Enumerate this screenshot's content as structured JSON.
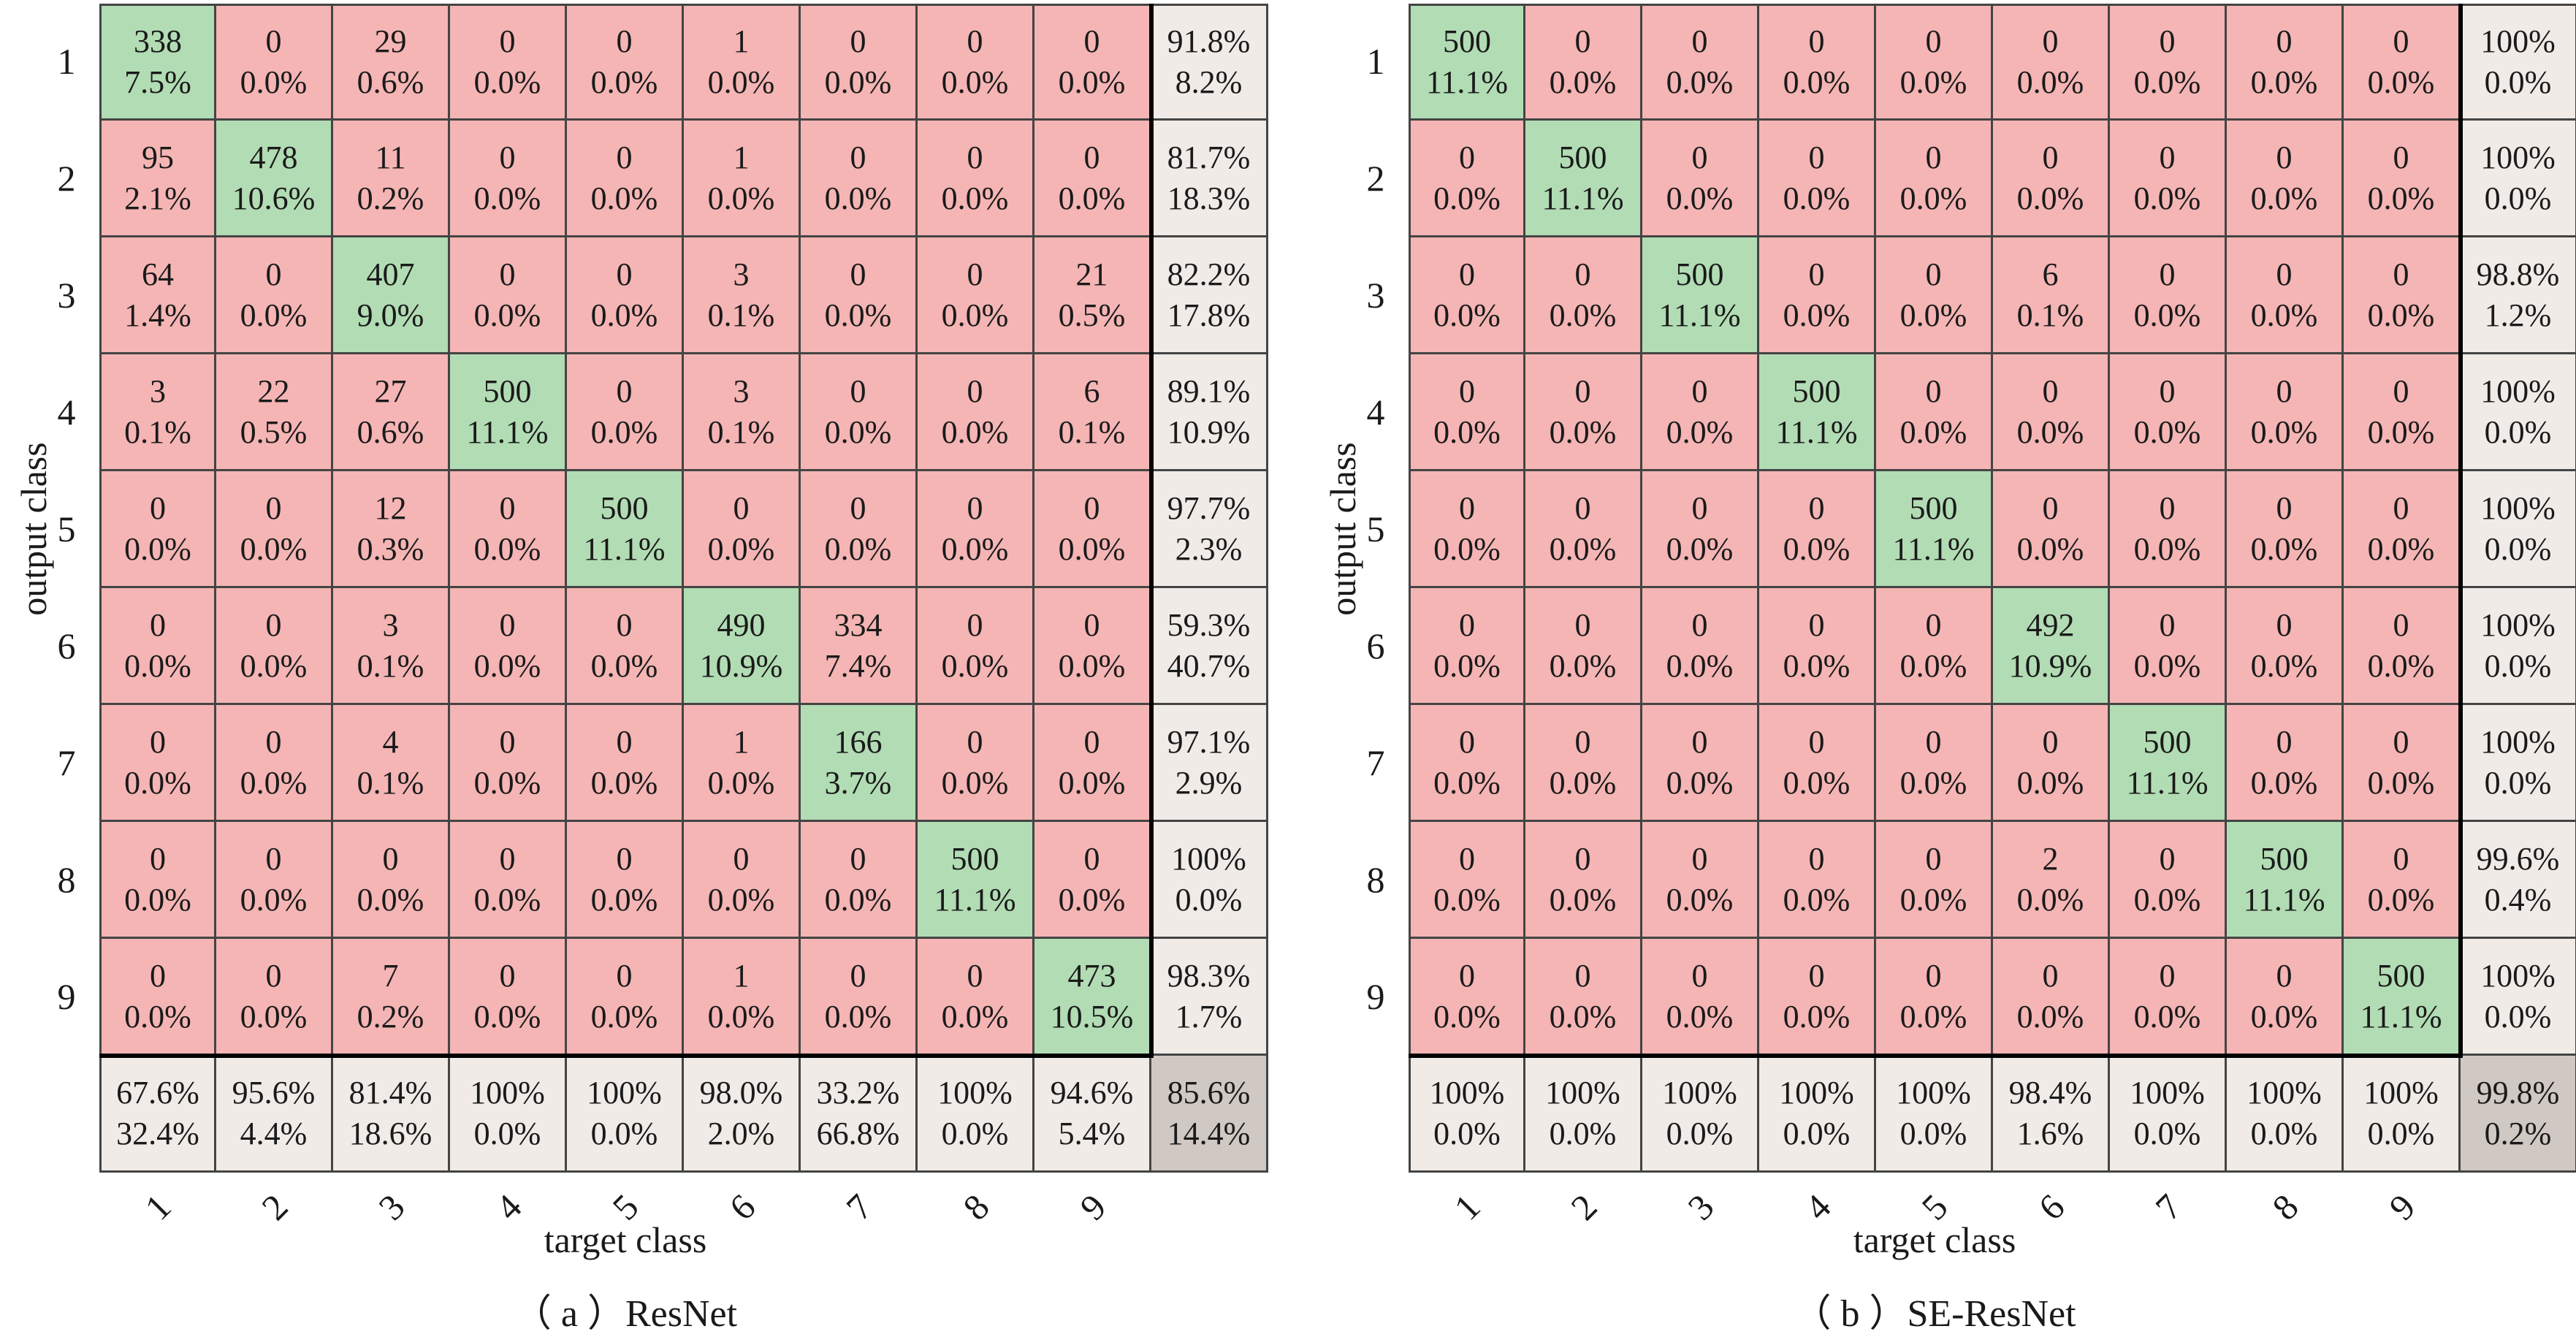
{
  "chart_data": [
    {
      "type": "heatmap",
      "caption": "（ a ）ResNet",
      "xlabel": "target class",
      "ylabel": "output class",
      "classes": [
        "1",
        "2",
        "3",
        "4",
        "5",
        "6",
        "7",
        "8",
        "9"
      ],
      "matrix": [
        [
          338,
          0,
          29,
          0,
          0,
          1,
          0,
          0,
          0
        ],
        [
          95,
          478,
          11,
          0,
          0,
          1,
          0,
          0,
          0
        ],
        [
          64,
          0,
          407,
          0,
          0,
          3,
          0,
          0,
          21
        ],
        [
          3,
          22,
          27,
          500,
          0,
          3,
          0,
          0,
          6
        ],
        [
          0,
          0,
          12,
          0,
          500,
          0,
          0,
          0,
          0
        ],
        [
          0,
          0,
          3,
          0,
          0,
          490,
          334,
          0,
          0
        ],
        [
          0,
          0,
          4,
          0,
          0,
          1,
          166,
          0,
          0
        ],
        [
          0,
          0,
          0,
          0,
          0,
          0,
          0,
          500,
          0
        ],
        [
          0,
          0,
          7,
          0,
          0,
          1,
          0,
          0,
          473
        ]
      ],
      "matrix_pct": [
        [
          "7.5%",
          "0.0%",
          "0.6%",
          "0.0%",
          "0.0%",
          "0.0%",
          "0.0%",
          "0.0%",
          "0.0%"
        ],
        [
          "2.1%",
          "10.6%",
          "0.2%",
          "0.0%",
          "0.0%",
          "0.0%",
          "0.0%",
          "0.0%",
          "0.0%"
        ],
        [
          "1.4%",
          "0.0%",
          "9.0%",
          "0.0%",
          "0.0%",
          "0.1%",
          "0.0%",
          "0.0%",
          "0.5%"
        ],
        [
          "0.1%",
          "0.5%",
          "0.6%",
          "11.1%",
          "0.0%",
          "0.1%",
          "0.0%",
          "0.0%",
          "0.1%"
        ],
        [
          "0.0%",
          "0.0%",
          "0.3%",
          "0.0%",
          "11.1%",
          "0.0%",
          "0.0%",
          "0.0%",
          "0.0%"
        ],
        [
          "0.0%",
          "0.0%",
          "0.1%",
          "0.0%",
          "0.0%",
          "10.9%",
          "7.4%",
          "0.0%",
          "0.0%"
        ],
        [
          "0.0%",
          "0.0%",
          "0.1%",
          "0.0%",
          "0.0%",
          "0.0%",
          "3.7%",
          "0.0%",
          "0.0%"
        ],
        [
          "0.0%",
          "0.0%",
          "0.0%",
          "0.0%",
          "0.0%",
          "0.0%",
          "0.0%",
          "11.1%",
          "0.0%"
        ],
        [
          "0.0%",
          "0.0%",
          "0.2%",
          "0.0%",
          "0.0%",
          "0.0%",
          "0.0%",
          "0.0%",
          "10.5%"
        ]
      ],
      "row_summary": [
        [
          "91.8%",
          "8.2%"
        ],
        [
          "81.7%",
          "18.3%"
        ],
        [
          "82.2%",
          "17.8%"
        ],
        [
          "89.1%",
          "10.9%"
        ],
        [
          "97.7%",
          "2.3%"
        ],
        [
          "59.3%",
          "40.7%"
        ],
        [
          "97.1%",
          "2.9%"
        ],
        [
          "100%",
          "0.0%"
        ],
        [
          "98.3%",
          "1.7%"
        ]
      ],
      "col_summary": [
        [
          "67.6%",
          "32.4%"
        ],
        [
          "95.6%",
          "4.4%"
        ],
        [
          "81.4%",
          "18.6%"
        ],
        [
          "100%",
          "0.0%"
        ],
        [
          "100%",
          "0.0%"
        ],
        [
          "98.0%",
          "2.0%"
        ],
        [
          "33.2%",
          "66.8%"
        ],
        [
          "100%",
          "0.0%"
        ],
        [
          "94.6%",
          "5.4%"
        ]
      ],
      "overall": [
        "85.6%",
        "14.4%"
      ]
    },
    {
      "type": "heatmap",
      "caption": "（ b ）SE-ResNet",
      "xlabel": "target class",
      "ylabel": "output class",
      "classes": [
        "1",
        "2",
        "3",
        "4",
        "5",
        "6",
        "7",
        "8",
        "9"
      ],
      "matrix": [
        [
          500,
          0,
          0,
          0,
          0,
          0,
          0,
          0,
          0
        ],
        [
          0,
          500,
          0,
          0,
          0,
          0,
          0,
          0,
          0
        ],
        [
          0,
          0,
          500,
          0,
          0,
          6,
          0,
          0,
          0
        ],
        [
          0,
          0,
          0,
          500,
          0,
          0,
          0,
          0,
          0
        ],
        [
          0,
          0,
          0,
          0,
          500,
          0,
          0,
          0,
          0
        ],
        [
          0,
          0,
          0,
          0,
          0,
          492,
          0,
          0,
          0
        ],
        [
          0,
          0,
          0,
          0,
          0,
          0,
          500,
          0,
          0
        ],
        [
          0,
          0,
          0,
          0,
          0,
          2,
          0,
          500,
          0
        ],
        [
          0,
          0,
          0,
          0,
          0,
          0,
          0,
          0,
          500
        ]
      ],
      "matrix_pct": [
        [
          "11.1%",
          "0.0%",
          "0.0%",
          "0.0%",
          "0.0%",
          "0.0%",
          "0.0%",
          "0.0%",
          "0.0%"
        ],
        [
          "0.0%",
          "11.1%",
          "0.0%",
          "0.0%",
          "0.0%",
          "0.0%",
          "0.0%",
          "0.0%",
          "0.0%"
        ],
        [
          "0.0%",
          "0.0%",
          "11.1%",
          "0.0%",
          "0.0%",
          "0.1%",
          "0.0%",
          "0.0%",
          "0.0%"
        ],
        [
          "0.0%",
          "0.0%",
          "0.0%",
          "11.1%",
          "0.0%",
          "0.0%",
          "0.0%",
          "0.0%",
          "0.0%"
        ],
        [
          "0.0%",
          "0.0%",
          "0.0%",
          "0.0%",
          "11.1%",
          "0.0%",
          "0.0%",
          "0.0%",
          "0.0%"
        ],
        [
          "0.0%",
          "0.0%",
          "0.0%",
          "0.0%",
          "0.0%",
          "10.9%",
          "0.0%",
          "0.0%",
          "0.0%"
        ],
        [
          "0.0%",
          "0.0%",
          "0.0%",
          "0.0%",
          "0.0%",
          "0.0%",
          "11.1%",
          "0.0%",
          "0.0%"
        ],
        [
          "0.0%",
          "0.0%",
          "0.0%",
          "0.0%",
          "0.0%",
          "0.0%",
          "0.0%",
          "11.1%",
          "0.0%"
        ],
        [
          "0.0%",
          "0.0%",
          "0.0%",
          "0.0%",
          "0.0%",
          "0.0%",
          "0.0%",
          "0.0%",
          "11.1%"
        ]
      ],
      "row_summary": [
        [
          "100%",
          "0.0%"
        ],
        [
          "100%",
          "0.0%"
        ],
        [
          "98.8%",
          "1.2%"
        ],
        [
          "100%",
          "0.0%"
        ],
        [
          "100%",
          "0.0%"
        ],
        [
          "100%",
          "0.0%"
        ],
        [
          "100%",
          "0.0%"
        ],
        [
          "99.6%",
          "0.4%"
        ],
        [
          "100%",
          "0.0%"
        ]
      ],
      "col_summary": [
        [
          "100%",
          "0.0%"
        ],
        [
          "100%",
          "0.0%"
        ],
        [
          "100%",
          "0.0%"
        ],
        [
          "100%",
          "0.0%"
        ],
        [
          "100%",
          "0.0%"
        ],
        [
          "98.4%",
          "1.6%"
        ],
        [
          "100%",
          "0.0%"
        ],
        [
          "100%",
          "0.0%"
        ],
        [
          "100%",
          "0.0%"
        ]
      ],
      "overall": [
        "99.8%",
        "0.2%"
      ]
    }
  ]
}
